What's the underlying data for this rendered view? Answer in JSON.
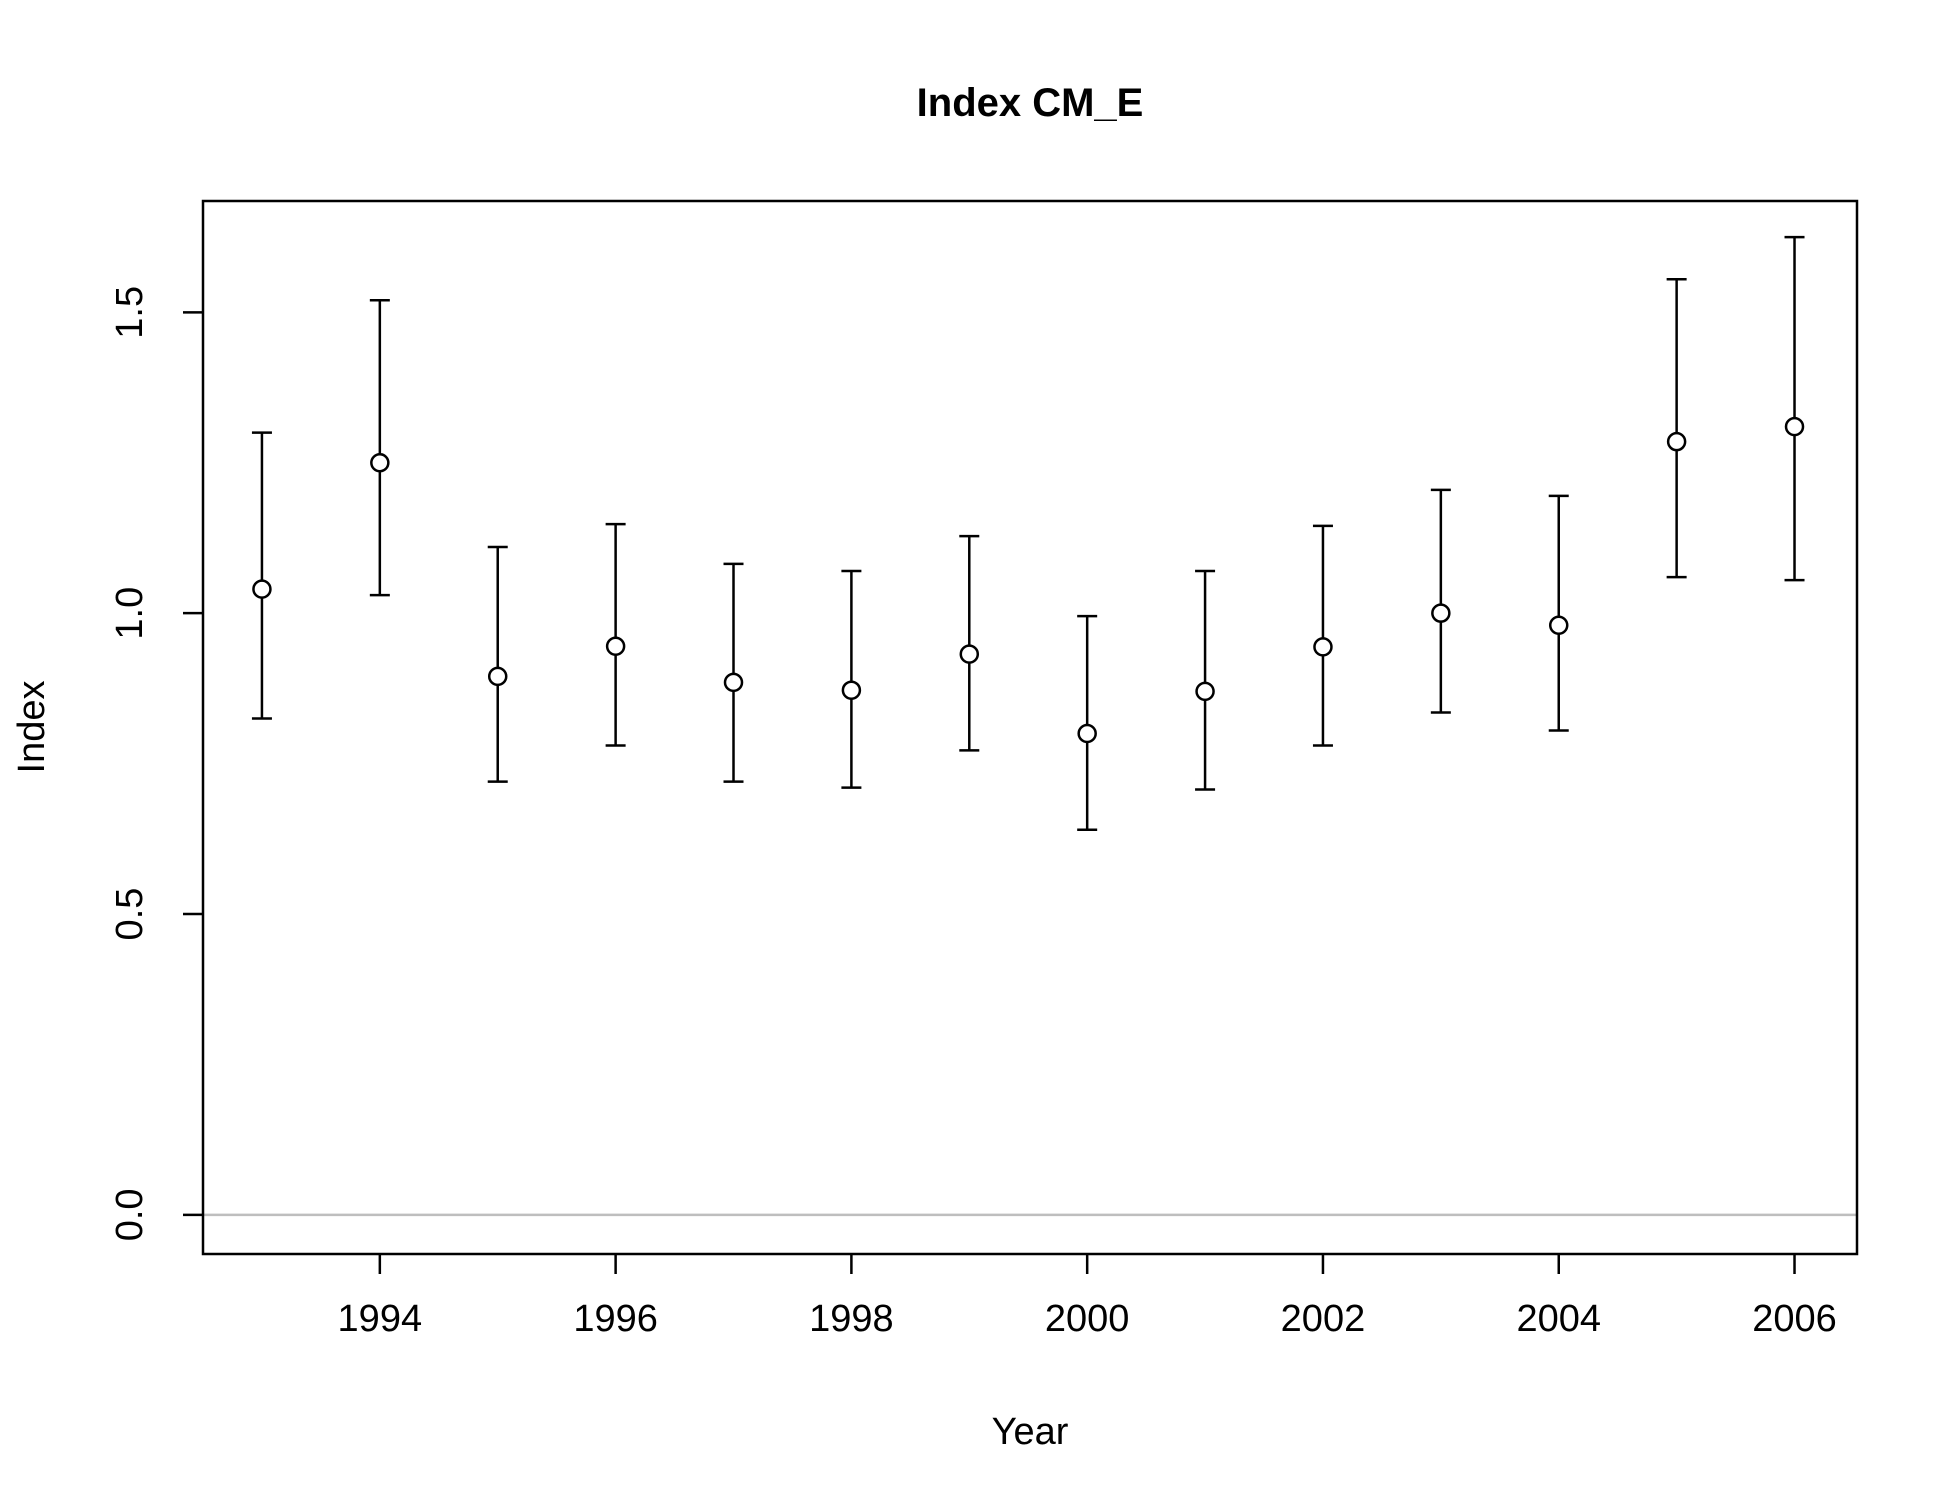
{
  "chart_data": {
    "type": "scatter",
    "title": "Index CM_E",
    "xlabel": "Year",
    "ylabel": "Index",
    "x": [
      1993,
      1994,
      1995,
      1996,
      1997,
      1998,
      1999,
      2000,
      2001,
      2002,
      2003,
      2004,
      2005,
      2006
    ],
    "series": [
      {
        "values": [
          1.04,
          1.25,
          0.895,
          0.945,
          0.885,
          0.872,
          0.932,
          0.8,
          0.87,
          0.944,
          1.0,
          0.98,
          1.285,
          1.31
        ],
        "lower": [
          0.825,
          1.03,
          0.72,
          0.78,
          0.72,
          0.71,
          0.772,
          0.64,
          0.707,
          0.78,
          0.835,
          0.805,
          1.06,
          1.055
        ],
        "upper": [
          1.3,
          1.52,
          1.11,
          1.148,
          1.082,
          1.07,
          1.128,
          0.995,
          1.07,
          1.145,
          1.205,
          1.195,
          1.555,
          1.625
        ]
      }
    ],
    "xlim": [
      1992.5,
      2006.53
    ],
    "ylim": [
      -0.065,
      1.685
    ],
    "xticks": [
      "1994",
      "1996",
      "1998",
      "2000",
      "2002",
      "2004",
      "2006"
    ],
    "yticks": [
      "0.0",
      "0.5",
      "1.0",
      "1.5"
    ],
    "reference_line": {
      "y": 0,
      "color": "#bebebe"
    },
    "grid": false,
    "legend": "none"
  }
}
